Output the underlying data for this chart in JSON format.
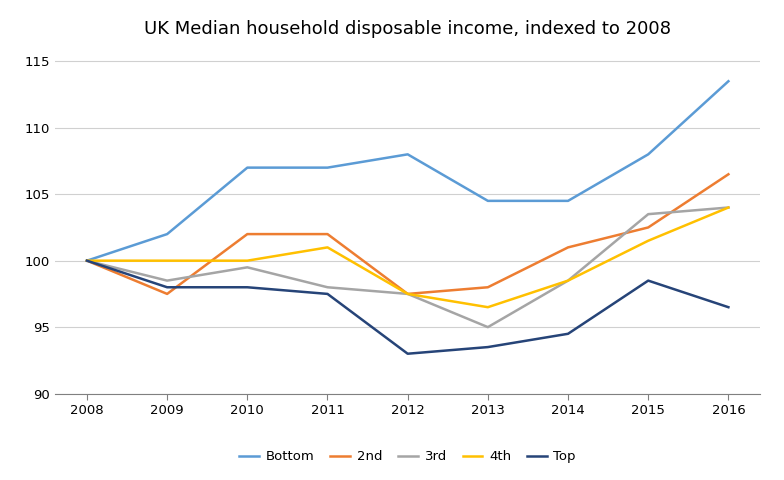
{
  "title": "UK Median household disposable income, indexed to 2008",
  "years": [
    2008,
    2009,
    2010,
    2011,
    2012,
    2013,
    2014,
    2015,
    2016
  ],
  "series": {
    "Bottom": [
      100.0,
      102.0,
      107.0,
      107.0,
      108.0,
      104.5,
      104.5,
      108.0,
      113.5
    ],
    "2nd": [
      100.0,
      97.5,
      102.0,
      102.0,
      97.5,
      98.0,
      101.0,
      102.5,
      106.5
    ],
    "3rd": [
      100.0,
      98.5,
      99.5,
      98.0,
      97.5,
      95.0,
      98.5,
      103.5,
      104.0
    ],
    "4th": [
      100.0,
      100.0,
      100.0,
      101.0,
      97.5,
      96.5,
      98.5,
      101.5,
      104.0
    ],
    "Top": [
      100.0,
      98.0,
      98.0,
      97.5,
      93.0,
      93.5,
      94.5,
      98.5,
      96.5
    ]
  },
  "colors": {
    "Bottom": "#5B9BD5",
    "2nd": "#ED7D31",
    "3rd": "#A5A5A5",
    "4th": "#FFC000",
    "Top": "#264478"
  },
  "ylim": [
    90,
    116
  ],
  "yticks": [
    90,
    95,
    100,
    105,
    110,
    115
  ],
  "background_color": "#FFFFFF",
  "grid_color": "#D0D0D0",
  "title_fontsize": 13,
  "legend_order": [
    "Bottom",
    "2nd",
    "3rd",
    "4th",
    "Top"
  ]
}
